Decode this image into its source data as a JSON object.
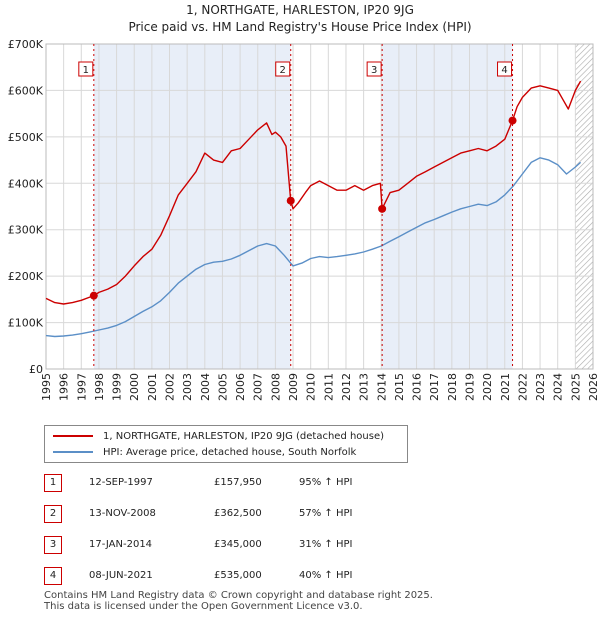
{
  "chart_data": {
    "type": "line",
    "title": "1, NORTHGATE, HARLESTON, IP20 9JG",
    "subtitle": "Price paid vs. HM Land Registry's House Price Index (HPI)",
    "xlim": [
      1995,
      2026
    ],
    "ylim": [
      0,
      700000
    ],
    "y_ticks": [
      0,
      100000,
      200000,
      300000,
      400000,
      500000,
      600000,
      700000
    ],
    "y_tick_labels": [
      "£0",
      "£100K",
      "£200K",
      "£300K",
      "£400K",
      "£500K",
      "£600K",
      "£700K"
    ],
    "x_ticks": [
      1995,
      1996,
      1997,
      1998,
      1999,
      2000,
      2001,
      2002,
      2003,
      2004,
      2005,
      2006,
      2007,
      2008,
      2009,
      2010,
      2011,
      2012,
      2013,
      2014,
      2015,
      2016,
      2017,
      2018,
      2019,
      2020,
      2021,
      2022,
      2023,
      2024,
      2025,
      2026
    ],
    "grid": true,
    "forecast_from": 2025.0,
    "colors": {
      "property": "#cc0000",
      "hpi": "#5b8fc7",
      "shade": "#e8eef8",
      "grid": "#d8d8d8"
    },
    "series": [
      {
        "name": "1, NORTHGATE, HARLESTON, IP20 9JG (detached house)",
        "color": "#cc0000",
        "x": [
          1995.0,
          1995.5,
          1996.0,
          1996.5,
          1997.0,
          1997.5,
          1997.71,
          1998.0,
          1998.5,
          1999.0,
          1999.5,
          2000.0,
          2000.5,
          2001.0,
          2001.5,
          2002.0,
          2002.5,
          2003.0,
          2003.5,
          2004.0,
          2004.5,
          2005.0,
          2005.5,
          2006.0,
          2006.5,
          2007.0,
          2007.5,
          2007.8,
          2008.0,
          2008.3,
          2008.6,
          2008.87,
          2009.0,
          2009.3,
          2009.7,
          2010.0,
          2010.5,
          2011.0,
          2011.5,
          2012.0,
          2012.5,
          2013.0,
          2013.5,
          2013.95,
          2014.05,
          2014.5,
          2015.0,
          2015.5,
          2016.0,
          2016.5,
          2017.0,
          2017.5,
          2018.0,
          2018.5,
          2019.0,
          2019.5,
          2020.0,
          2020.5,
          2021.0,
          2021.44,
          2021.7,
          2022.0,
          2022.5,
          2023.0,
          2023.5,
          2024.0,
          2024.3,
          2024.6,
          2025.0,
          2025.3
        ],
        "values": [
          152000,
          143000,
          140000,
          143000,
          148000,
          155000,
          157950,
          165000,
          172000,
          182000,
          200000,
          222000,
          242000,
          258000,
          288000,
          330000,
          375000,
          400000,
          425000,
          465000,
          450000,
          445000,
          470000,
          475000,
          495000,
          515000,
          530000,
          505000,
          510000,
          500000,
          480000,
          362500,
          345000,
          358000,
          380000,
          395000,
          405000,
          395000,
          385000,
          385000,
          395000,
          385000,
          395000,
          400000,
          345000,
          380000,
          385000,
          400000,
          415000,
          425000,
          435000,
          445000,
          455000,
          465000,
          470000,
          475000,
          470000,
          480000,
          495000,
          535000,
          565000,
          585000,
          605000,
          610000,
          605000,
          600000,
          580000,
          560000,
          600000,
          620000
        ]
      },
      {
        "name": "HPI: Average price, detached house, South Norfolk",
        "color": "#5b8fc7",
        "x": [
          1995.0,
          1995.5,
          1996.0,
          1996.5,
          1997.0,
          1997.5,
          1998.0,
          1998.5,
          1999.0,
          1999.5,
          2000.0,
          2000.5,
          2001.0,
          2001.5,
          2002.0,
          2002.5,
          2003.0,
          2003.5,
          2004.0,
          2004.5,
          2005.0,
          2005.5,
          2006.0,
          2006.5,
          2007.0,
          2007.5,
          2008.0,
          2008.5,
          2009.0,
          2009.5,
          2010.0,
          2010.5,
          2011.0,
          2011.5,
          2012.0,
          2012.5,
          2013.0,
          2013.5,
          2014.0,
          2014.5,
          2015.0,
          2015.5,
          2016.0,
          2016.5,
          2017.0,
          2017.5,
          2018.0,
          2018.5,
          2019.0,
          2019.5,
          2020.0,
          2020.5,
          2021.0,
          2021.5,
          2022.0,
          2022.5,
          2023.0,
          2023.5,
          2024.0,
          2024.5,
          2025.0,
          2025.3
        ],
        "values": [
          72000,
          70000,
          71000,
          73000,
          76000,
          80000,
          84000,
          88000,
          94000,
          102000,
          113000,
          124000,
          134000,
          147000,
          165000,
          185000,
          200000,
          215000,
          225000,
          230000,
          232000,
          237000,
          245000,
          255000,
          265000,
          270000,
          265000,
          245000,
          222000,
          228000,
          238000,
          242000,
          240000,
          242000,
          245000,
          248000,
          252000,
          258000,
          265000,
          275000,
          285000,
          295000,
          305000,
          315000,
          322000,
          330000,
          338000,
          345000,
          350000,
          355000,
          352000,
          360000,
          375000,
          395000,
          420000,
          445000,
          455000,
          450000,
          440000,
          420000,
          435000,
          445000
        ]
      }
    ],
    "sale_markers": [
      {
        "label": "1",
        "x": 1997.71,
        "value": 157950
      },
      {
        "label": "2",
        "x": 2008.87,
        "value": 362500
      },
      {
        "label": "3",
        "x": 2014.05,
        "value": 345000
      },
      {
        "label": "4",
        "x": 2021.44,
        "value": 535000
      }
    ],
    "shaded_periods": [
      [
        1997.71,
        2008.87
      ],
      [
        2014.05,
        2021.44
      ]
    ]
  },
  "legend": {
    "property_label": "1, NORTHGATE, HARLESTON, IP20 9JG (detached house)",
    "hpi_label": "HPI: Average price, detached house, South Norfolk"
  },
  "sales": [
    {
      "num": "1",
      "date": "12-SEP-1997",
      "price": "£157,950",
      "hpi": "95% ↑ HPI"
    },
    {
      "num": "2",
      "date": "13-NOV-2008",
      "price": "£362,500",
      "hpi": "57% ↑ HPI"
    },
    {
      "num": "3",
      "date": "17-JAN-2014",
      "price": "£345,000",
      "hpi": "31% ↑ HPI"
    },
    {
      "num": "4",
      "date": "08-JUN-2021",
      "price": "£535,000",
      "hpi": "40% ↑ HPI"
    }
  ],
  "footer": {
    "line1": "Contains HM Land Registry data © Crown copyright and database right 2025.",
    "line2": "This data is licensed under the Open Government Licence v3.0."
  }
}
